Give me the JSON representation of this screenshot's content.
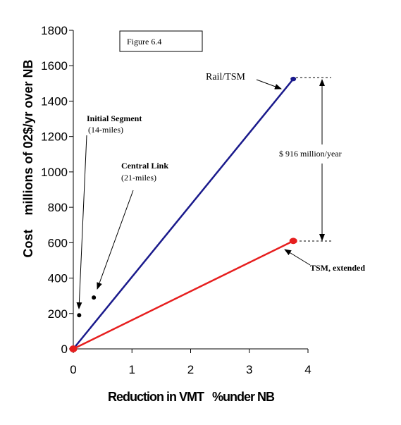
{
  "chart_data": {
    "type": "line",
    "figure_label": "Figure 6.4",
    "xlabel": "Reduction in VMT   %under NB",
    "ylabel": "Cost    millions of 02$/yr over NB",
    "xlim": [
      0,
      4
    ],
    "ylim": [
      0,
      1800
    ],
    "x_ticks": [
      "0",
      "1",
      "2",
      "3",
      "4"
    ],
    "y_ticks": [
      "0",
      "200",
      "400",
      "600",
      "800",
      "1000",
      "1200",
      "1400",
      "1600",
      "1800"
    ],
    "grid": false,
    "series": [
      {
        "name": "Rail/TSM",
        "color": "#1a1a8c",
        "points": [
          [
            0,
            0
          ],
          [
            3.75,
            1525
          ]
        ]
      },
      {
        "name": "TSM, extended",
        "color": "#e61e1e",
        "points": [
          [
            0,
            0
          ],
          [
            3.75,
            610
          ]
        ]
      }
    ],
    "points": [
      {
        "name": "Initial Segment",
        "detail": "(14-miles)",
        "x": 0.1,
        "y": 190
      },
      {
        "name": "Central Link",
        "detail": "(21-miles)",
        "x": 0.35,
        "y": 290
      }
    ],
    "difference_label": "$ 916 million/year",
    "colors": {
      "rail": "#1a1a8c",
      "tsm": "#e61e1e",
      "points": "#000000"
    }
  }
}
